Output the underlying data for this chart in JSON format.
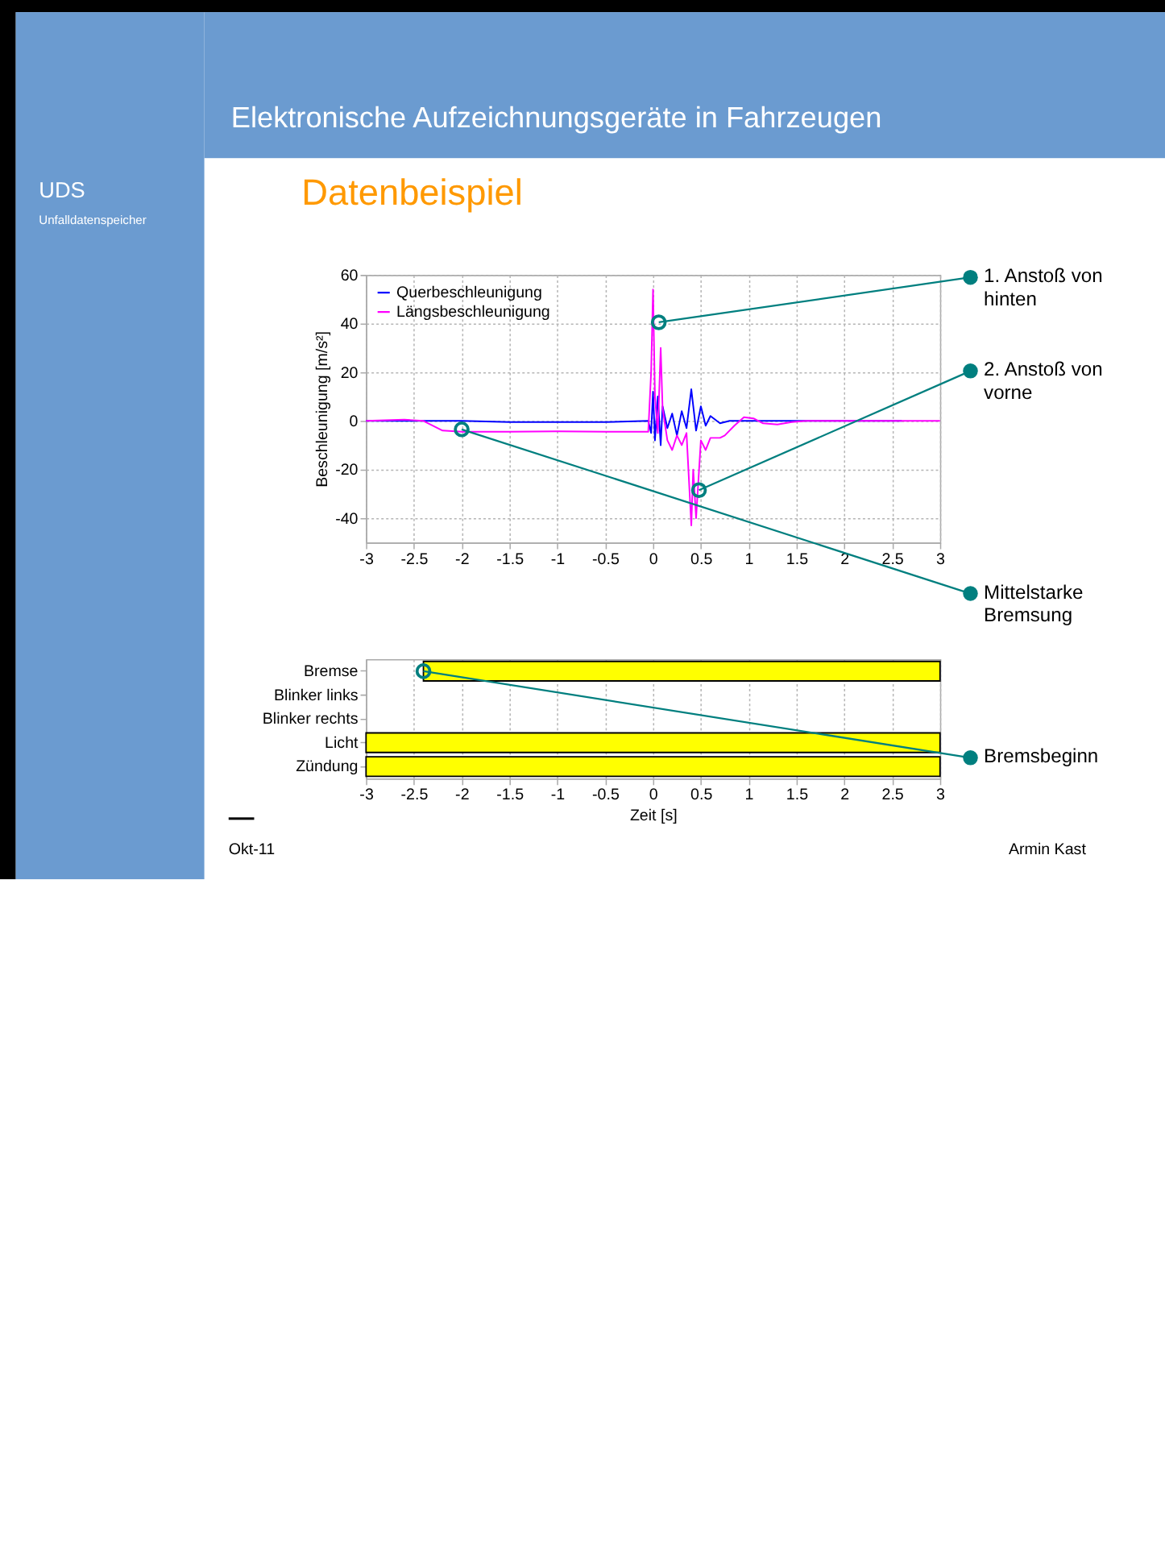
{
  "chart_data": [
    {
      "type": "line",
      "title": "Elektronische Aufzeichnungsgeräte in Fahrzeugen",
      "subtitle": "Datenbeispiel",
      "ylabel": "Beschleunigung [m/s²]",
      "annotations": [
        {
          "text": "1. Anstoß von hinten",
          "x": 0.06,
          "y": 40.5
        },
        {
          "text": "2. Anstoß von vorne",
          "x": 0.48,
          "y": -28.5
        },
        {
          "text": "Mittelstarke Bremsung",
          "x": -2.0,
          "y": -3.5
        },
        "UDS",
        "Unfalldatenspeicher",
        "Okt-11",
        "Armin Kast"
      ],
      "series": [
        {
          "name": "Querbeschleunigung",
          "color": "#0000ff",
          "x": [
            -3,
            -2.5,
            -2,
            -1.5,
            -1,
            -0.5,
            -0.05,
            -0.02,
            0,
            0.02,
            0.05,
            0.08,
            0.1,
            0.15,
            0.2,
            0.25,
            0.3,
            0.35,
            0.4,
            0.45,
            0.5,
            0.55,
            0.6,
            0.7,
            0.8,
            1,
            1.5,
            2,
            2.6
          ],
          "values": [
            0,
            0,
            0,
            -0.5,
            -0.5,
            -0.5,
            0,
            -5,
            12,
            -8,
            10,
            -10,
            6,
            -3,
            3,
            -6,
            4,
            -3,
            13,
            -4,
            6,
            -2,
            2,
            -1,
            0,
            0,
            0,
            0,
            0
          ]
        },
        {
          "name": "Längsbeschleunigung",
          "color": "#ff00ff",
          "x": [
            -3,
            -2.6,
            -2.4,
            -2.3,
            -2.2,
            -2,
            -1.5,
            -1,
            -0.5,
            -0.05,
            -0.02,
            0,
            0.02,
            0.05,
            0.08,
            0.1,
            0.15,
            0.2,
            0.25,
            0.3,
            0.35,
            0.4,
            0.42,
            0.45,
            0.5,
            0.55,
            0.6,
            0.7,
            0.75,
            0.85,
            0.95,
            1.05,
            1.15,
            1.3,
            1.45,
            1.6,
            2,
            2.5,
            3
          ],
          "values": [
            0,
            0.5,
            0,
            -2,
            -4,
            -4.5,
            -4.5,
            -4.3,
            -4.5,
            -4.5,
            20,
            54,
            10,
            -5,
            30,
            5,
            -8,
            -12,
            -6,
            -10,
            -5,
            -43,
            -20,
            -40,
            -8,
            -12,
            -7,
            -7,
            -6,
            -2,
            1.5,
            1,
            -1,
            -1.5,
            -0.5,
            0,
            0,
            0,
            0
          ]
        }
      ],
      "xlim": [
        -3,
        3
      ],
      "xticks": [
        -3,
        -2.5,
        -2,
        -1.5,
        -1,
        -0.5,
        0,
        0.5,
        1,
        1.5,
        2,
        2.5,
        3
      ],
      "ylim": [
        -50,
        60
      ],
      "yticks": [
        -40,
        -20,
        0,
        20,
        40,
        60
      ],
      "grid": true,
      "legend": "top left"
    },
    {
      "type": "bar",
      "orientation": "horizontal",
      "categories": [
        "Bremse",
        "Blinker links",
        "Blinker rechts",
        "Licht",
        "Zündung"
      ],
      "base": [
        -2.4,
        null,
        null,
        -3,
        -3
      ],
      "values": [
        5.4,
        null,
        null,
        6,
        6
      ],
      "color": "#ffff00",
      "xlim": [
        -3,
        3
      ],
      "xticks": [
        -3,
        -2.5,
        -2,
        -1.5,
        -1,
        -0.5,
        0,
        0.5,
        1,
        1.5,
        2,
        2.5,
        3
      ],
      "xlabel": "Zeit [s]",
      "grid": "x",
      "annotations": [
        {
          "text": "Bremsbeginn",
          "x": -2.4,
          "y": "Bremse"
        }
      ]
    }
  ]
}
